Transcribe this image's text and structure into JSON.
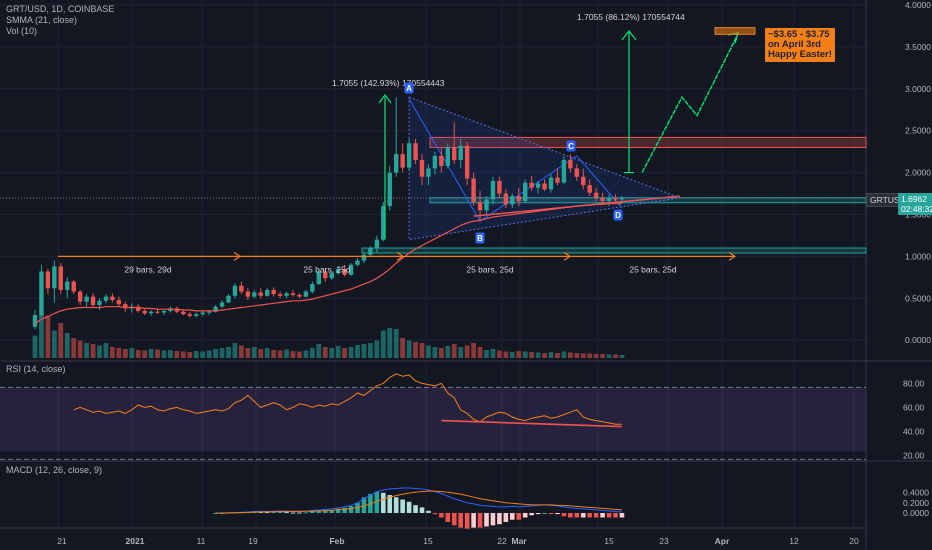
{
  "legend": {
    "symbol": "GRT/USD, 1D, COINBASE",
    "smma": "SMMA (21, close)",
    "vol": "Vol (10)"
  },
  "rsi_legend": "RSI (14, close)",
  "macd_legend": "MACD (12, 26, close, 9)",
  "ticker_badge": "GRTUSD",
  "last_price": "1.6962",
  "countdown": "02:48:32",
  "annotations": {
    "move1": "1.7055 (142.93%) 170554443",
    "move2": "1.7055 (86.12%) 170554744",
    "target_line1": "~$3.65 - $3.75",
    "target_line2": "on April 3rd",
    "target_line3": "Happy Easter!",
    "bars1": "29 bars, 29d",
    "bars2": "25 bars, 25d",
    "bars3": "25 bars, 25d",
    "bars4": "25 bars, 25d",
    "pt_a": "A",
    "pt_b": "B",
    "pt_c": "C",
    "pt_d": "D"
  },
  "colors": {
    "up": "#26a69a",
    "down": "#ef5350",
    "blue": "#2962ff",
    "orange": "#f57f17",
    "green": "#00e676",
    "background": "#131722"
  },
  "chart_data": [
    {
      "type": "candlestick",
      "title": "GRT/USD, 1D, COINBASE",
      "x_ticks": [
        "21",
        "2021",
        "11",
        "19",
        "Feb",
        "15",
        "22",
        "Mar",
        "15",
        "23",
        "Apr",
        "12",
        "20"
      ],
      "y_ticks": [
        "4.0000",
        "3.5000",
        "3.0000",
        "2.5000",
        "2.0000",
        "1.5000",
        "1.0000",
        "0.5000",
        "0.0000"
      ],
      "ylim": [
        -0.12,
        4.0
      ],
      "ohlc": [
        [
          0.16,
          0.36,
          0.13,
          0.3
        ],
        [
          0.3,
          0.9,
          0.28,
          0.82
        ],
        [
          0.82,
          0.85,
          0.55,
          0.62
        ],
        [
          0.62,
          0.95,
          0.45,
          0.88
        ],
        [
          0.88,
          0.92,
          0.55,
          0.6
        ],
        [
          0.6,
          0.75,
          0.5,
          0.7
        ],
        [
          0.7,
          0.72,
          0.55,
          0.58
        ],
        [
          0.58,
          0.6,
          0.42,
          0.46
        ],
        [
          0.46,
          0.55,
          0.4,
          0.52
        ],
        [
          0.52,
          0.56,
          0.38,
          0.42
        ],
        [
          0.42,
          0.5,
          0.36,
          0.47
        ],
        [
          0.47,
          0.55,
          0.44,
          0.52
        ],
        [
          0.52,
          0.56,
          0.45,
          0.48
        ],
        [
          0.48,
          0.52,
          0.4,
          0.43
        ],
        [
          0.43,
          0.46,
          0.34,
          0.38
        ],
        [
          0.38,
          0.44,
          0.33,
          0.4
        ],
        [
          0.4,
          0.43,
          0.33,
          0.35
        ],
        [
          0.35,
          0.38,
          0.3,
          0.32
        ],
        [
          0.32,
          0.36,
          0.29,
          0.34
        ],
        [
          0.34,
          0.38,
          0.31,
          0.33
        ],
        [
          0.33,
          0.36,
          0.3,
          0.35
        ],
        [
          0.35,
          0.4,
          0.33,
          0.38
        ],
        [
          0.38,
          0.4,
          0.32,
          0.34
        ],
        [
          0.34,
          0.37,
          0.3,
          0.31
        ],
        [
          0.31,
          0.34,
          0.27,
          0.29
        ],
        [
          0.29,
          0.33,
          0.27,
          0.31
        ],
        [
          0.31,
          0.35,
          0.29,
          0.33
        ],
        [
          0.33,
          0.36,
          0.3,
          0.34
        ],
        [
          0.34,
          0.42,
          0.33,
          0.4
        ],
        [
          0.4,
          0.48,
          0.38,
          0.45
        ],
        [
          0.45,
          0.55,
          0.44,
          0.53
        ],
        [
          0.53,
          0.68,
          0.5,
          0.65
        ],
        [
          0.65,
          0.7,
          0.55,
          0.58
        ],
        [
          0.58,
          0.62,
          0.48,
          0.52
        ],
        [
          0.52,
          0.6,
          0.5,
          0.57
        ],
        [
          0.57,
          0.62,
          0.5,
          0.53
        ],
        [
          0.53,
          0.62,
          0.52,
          0.6
        ],
        [
          0.6,
          0.63,
          0.52,
          0.55
        ],
        [
          0.55,
          0.58,
          0.5,
          0.53
        ],
        [
          0.53,
          0.58,
          0.5,
          0.56
        ],
        [
          0.56,
          0.6,
          0.52,
          0.54
        ],
        [
          0.54,
          0.56,
          0.5,
          0.52
        ],
        [
          0.52,
          0.6,
          0.51,
          0.58
        ],
        [
          0.58,
          0.7,
          0.56,
          0.67
        ],
        [
          0.67,
          0.85,
          0.66,
          0.82
        ],
        [
          0.82,
          0.86,
          0.7,
          0.74
        ],
        [
          0.74,
          0.82,
          0.72,
          0.8
        ],
        [
          0.8,
          0.88,
          0.78,
          0.85
        ],
        [
          0.85,
          0.9,
          0.76,
          0.78
        ],
        [
          0.78,
          0.92,
          0.77,
          0.9
        ],
        [
          0.9,
          0.98,
          0.88,
          0.95
        ],
        [
          0.95,
          1.05,
          0.92,
          1.02
        ],
        [
          1.02,
          1.12,
          1.0,
          1.1
        ],
        [
          1.1,
          1.25,
          1.05,
          1.2
        ],
        [
          1.2,
          1.65,
          1.18,
          1.6
        ],
        [
          1.6,
          2.08,
          1.55,
          2.0
        ],
        [
          2.0,
          2.9,
          1.95,
          2.22
        ],
        [
          2.22,
          2.35,
          2.0,
          2.06
        ],
        [
          2.06,
          2.4,
          2.02,
          2.35
        ],
        [
          2.35,
          2.4,
          2.1,
          2.15
        ],
        [
          2.15,
          2.22,
          1.85,
          1.95
        ],
        [
          1.95,
          2.1,
          1.85,
          2.05
        ],
        [
          2.05,
          2.25,
          1.98,
          2.2
        ],
        [
          2.2,
          2.3,
          2.0,
          2.08
        ],
        [
          2.08,
          2.35,
          2.05,
          2.3
        ],
        [
          2.3,
          2.6,
          2.1,
          2.15
        ],
        [
          2.15,
          2.4,
          2.05,
          2.32
        ],
        [
          2.32,
          2.36,
          1.85,
          1.93
        ],
        [
          1.93,
          2.0,
          1.6,
          1.65
        ],
        [
          1.65,
          1.78,
          1.42,
          1.55
        ],
        [
          1.55,
          1.72,
          1.5,
          1.68
        ],
        [
          1.68,
          1.95,
          1.62,
          1.9
        ],
        [
          1.9,
          1.95,
          1.7,
          1.75
        ],
        [
          1.75,
          1.8,
          1.58,
          1.62
        ],
        [
          1.62,
          1.75,
          1.58,
          1.72
        ],
        [
          1.72,
          1.82,
          1.6,
          1.66
        ],
        [
          1.66,
          1.92,
          1.64,
          1.88
        ],
        [
          1.88,
          1.96,
          1.78,
          1.82
        ],
        [
          1.82,
          1.9,
          1.75,
          1.87
        ],
        [
          1.87,
          1.92,
          1.78,
          1.8
        ],
        [
          1.8,
          1.98,
          1.76,
          1.94
        ],
        [
          1.94,
          2.05,
          1.85,
          1.88
        ],
        [
          1.88,
          2.2,
          1.86,
          2.15
        ],
        [
          2.15,
          2.22,
          2.0,
          2.05
        ],
        [
          2.05,
          2.1,
          1.9,
          1.95
        ],
        [
          1.95,
          2.05,
          1.8,
          1.85
        ],
        [
          1.85,
          1.92,
          1.72,
          1.76
        ],
        [
          1.76,
          1.82,
          1.66,
          1.7
        ],
        [
          1.7,
          1.76,
          1.62,
          1.66
        ],
        [
          1.66,
          1.74,
          1.6,
          1.7
        ],
        [
          1.7,
          1.74,
          1.64,
          1.68
        ],
        [
          1.68,
          1.72,
          1.66,
          1.7
        ]
      ],
      "smma": [
        0.2,
        0.25,
        0.28,
        0.32,
        0.35,
        0.37,
        0.38,
        0.39,
        0.39,
        0.39,
        0.39,
        0.4,
        0.4,
        0.4,
        0.39,
        0.39,
        0.39,
        0.38,
        0.38,
        0.37,
        0.37,
        0.37,
        0.37,
        0.36,
        0.36,
        0.35,
        0.35,
        0.35,
        0.35,
        0.36,
        0.37,
        0.38,
        0.39,
        0.4,
        0.41,
        0.42,
        0.43,
        0.44,
        0.45,
        0.46,
        0.47,
        0.47,
        0.48,
        0.49,
        0.51,
        0.53,
        0.55,
        0.57,
        0.59,
        0.61,
        0.64,
        0.67,
        0.7,
        0.74,
        0.79,
        0.85,
        0.92,
        0.98,
        1.04,
        1.09,
        1.13,
        1.17,
        1.21,
        1.25,
        1.29,
        1.33,
        1.37,
        1.4,
        1.42,
        1.43,
        1.45,
        1.47,
        1.48,
        1.49,
        1.5,
        1.51,
        1.52,
        1.53,
        1.54,
        1.55,
        1.56,
        1.57,
        1.58,
        1.59,
        1.6,
        1.61,
        1.61,
        1.62,
        1.62,
        1.63,
        1.63,
        1.63
      ],
      "volume": [
        0.45,
        0.9,
        0.85,
        0.55,
        0.7,
        0.5,
        0.4,
        0.35,
        0.3,
        0.28,
        0.25,
        0.3,
        0.22,
        0.2,
        0.18,
        0.2,
        0.16,
        0.15,
        0.18,
        0.17,
        0.15,
        0.16,
        0.14,
        0.13,
        0.12,
        0.14,
        0.13,
        0.15,
        0.18,
        0.2,
        0.22,
        0.3,
        0.25,
        0.2,
        0.22,
        0.18,
        0.2,
        0.16,
        0.15,
        0.17,
        0.14,
        0.13,
        0.15,
        0.2,
        0.28,
        0.22,
        0.2,
        0.24,
        0.2,
        0.22,
        0.26,
        0.28,
        0.3,
        0.35,
        0.55,
        0.6,
        0.58,
        0.4,
        0.35,
        0.32,
        0.3,
        0.25,
        0.22,
        0.2,
        0.24,
        0.28,
        0.22,
        0.25,
        0.3,
        0.22,
        0.16,
        0.18,
        0.15,
        0.13,
        0.12,
        0.14,
        0.13,
        0.12,
        0.11,
        0.1,
        0.12,
        0.1,
        0.13,
        0.11,
        0.1,
        0.09,
        0.09,
        0.08,
        0.08,
        0.07,
        0.07,
        0.06
      ]
    },
    {
      "type": "line",
      "title": "RSI (14, close)",
      "y_ticks": [
        "80.00",
        "60.00",
        "40.00",
        "20.00"
      ],
      "ylim": [
        15,
        92
      ],
      "levels": [
        70,
        30
      ],
      "values": [
        58,
        60,
        58,
        56,
        57,
        55,
        56,
        57,
        55,
        58,
        62,
        60,
        61,
        58,
        57,
        59,
        60,
        58,
        57,
        55,
        56,
        57,
        58,
        57,
        59,
        64,
        66,
        70,
        65,
        60,
        62,
        64,
        62,
        58,
        60,
        63,
        62,
        60,
        62,
        61,
        63,
        62,
        65,
        68,
        72,
        70,
        74,
        78,
        80,
        85,
        88,
        86,
        87,
        82,
        80,
        79,
        78,
        80,
        72,
        68,
        58,
        55,
        50,
        48,
        52,
        54,
        56,
        55,
        52,
        50,
        49,
        51,
        52,
        53,
        51,
        52,
        54,
        56,
        58,
        52,
        50,
        49,
        48,
        47,
        46,
        46
      ],
      "trendline": [
        [
          63,
          49
        ],
        [
          91,
          44
        ]
      ]
    },
    {
      "type": "line",
      "title": "MACD (12, 26, close, 9)",
      "y_ticks": [
        "0.4000",
        "0.2000",
        "0.0000"
      ],
      "ylim": [
        -0.17,
        0.56
      ],
      "start_index": 28,
      "macd": [
        0.0,
        0.0,
        0.005,
        0.01,
        0.015,
        0.02,
        0.03,
        0.032,
        0.03,
        0.035,
        0.04,
        0.038,
        0.035,
        0.036,
        0.04,
        0.05,
        0.06,
        0.07,
        0.08,
        0.1,
        0.12,
        0.15,
        0.2,
        0.28,
        0.35,
        0.42,
        0.45,
        0.47,
        0.48,
        0.49,
        0.49,
        0.48,
        0.47,
        0.45,
        0.42,
        0.38,
        0.33,
        0.28,
        0.24,
        0.2,
        0.18,
        0.15,
        0.14,
        0.13,
        0.12,
        0.12,
        0.13,
        0.12,
        0.13,
        0.14,
        0.15,
        0.16,
        0.15,
        0.14,
        0.12,
        0.1,
        0.09,
        0.08,
        0.07,
        0.06,
        0.05,
        0.04,
        0.03,
        0.02
      ],
      "signal": [
        0.0,
        0.0,
        0.0,
        0.005,
        0.008,
        0.012,
        0.016,
        0.02,
        0.022,
        0.025,
        0.028,
        0.03,
        0.031,
        0.032,
        0.034,
        0.037,
        0.041,
        0.047,
        0.053,
        0.062,
        0.073,
        0.088,
        0.11,
        0.14,
        0.18,
        0.23,
        0.27,
        0.31,
        0.34,
        0.37,
        0.39,
        0.41,
        0.42,
        0.43,
        0.43,
        0.42,
        0.41,
        0.39,
        0.37,
        0.34,
        0.31,
        0.28,
        0.26,
        0.24,
        0.22,
        0.2,
        0.19,
        0.18,
        0.17,
        0.16,
        0.16,
        0.16,
        0.16,
        0.15,
        0.15,
        0.14,
        0.13,
        0.12,
        0.11,
        0.1,
        0.09,
        0.08,
        0.07,
        0.06
      ]
    }
  ]
}
